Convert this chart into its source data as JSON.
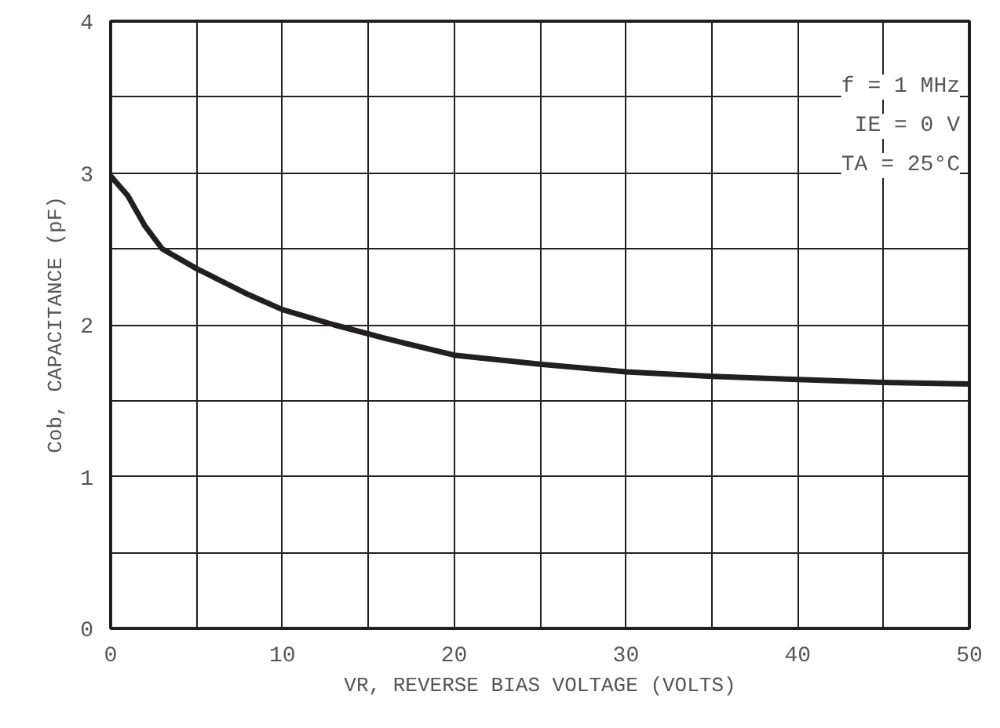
{
  "chart_data": {
    "type": "line",
    "xlabel": "VR, REVERSE BIAS VOLTAGE (VOLTS)",
    "ylabel": "Cob, CAPACITANCE (pF)",
    "annotations": [
      "f = 1 MHz",
      "IE = 0 V",
      "TA = 25°C"
    ],
    "x": [
      0,
      1,
      2,
      3,
      5,
      8,
      10,
      13,
      16,
      20,
      25,
      30,
      35,
      40,
      45,
      50
    ],
    "series": [
      {
        "color": "#231f20",
        "values": [
          2.98,
          2.85,
          2.65,
          2.5,
          2.37,
          2.2,
          2.1,
          2.0,
          1.91,
          1.8,
          1.74,
          1.69,
          1.66,
          1.64,
          1.62,
          1.61
        ]
      }
    ],
    "xlim": [
      0,
      50
    ],
    "ylim": [
      0,
      4
    ],
    "xticks": [
      0,
      {
        "value": 5,
        "label": null
      },
      10,
      {
        "value": 15,
        "label": null
      },
      20,
      {
        "value": 25,
        "label": null
      },
      30,
      {
        "value": 35,
        "label": null
      },
      40,
      {
        "value": 45,
        "label": null
      },
      50
    ],
    "yticks": [
      0,
      {
        "value": 0.5,
        "label": null
      },
      1,
      {
        "value": 1.5,
        "label": null
      },
      2,
      {
        "value": 2.5,
        "label": null
      },
      3,
      {
        "value": 3.5,
        "label": null
      },
      4
    ],
    "grid": true,
    "marker": "none",
    "line_style": "solid"
  }
}
